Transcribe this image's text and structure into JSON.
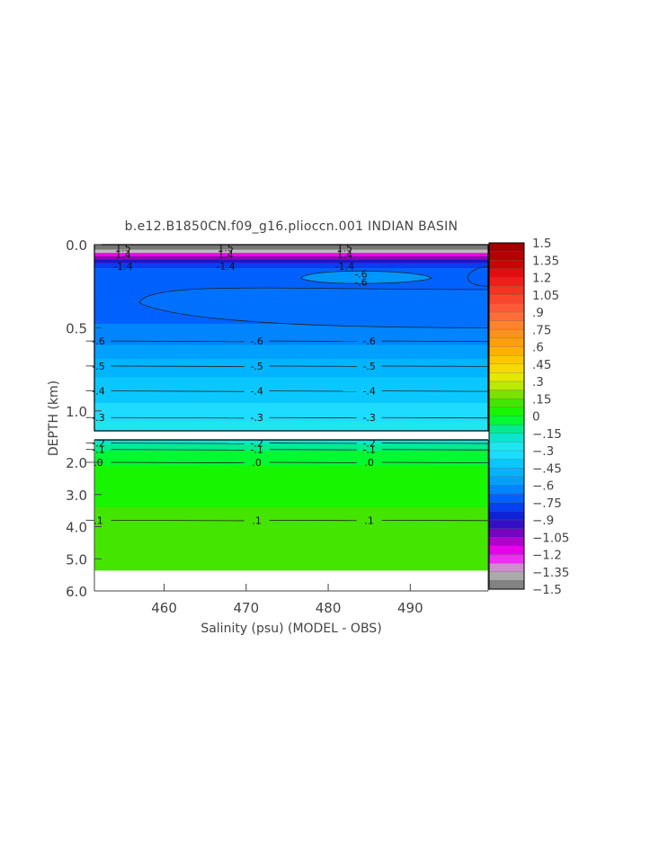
{
  "chart_data": {
    "type": "heatmap",
    "title": "b.e12.B1850CN.f09_g16.plioccn.001 INDIAN BASIN",
    "xlabel": "Salinity (psu) (MODEL - OBS)",
    "ylabel": "DEPTH (km)",
    "xlim": [
      451.5,
      499.5
    ],
    "x_ticks": [
      "460",
      "470",
      "480",
      "490"
    ],
    "x_tick_values": [
      460,
      470,
      480,
      490
    ],
    "upper_panel": {
      "ylim": [
        0.0,
        1.12
      ],
      "y_ticks": [
        "0.0",
        "0.5",
        "1.0"
      ],
      "y_tick_values": [
        0.0,
        0.5,
        1.0
      ]
    },
    "lower_panel": {
      "ylim": [
        1.3,
        6.0
      ],
      "y_ticks": [
        "2.0",
        "3.0",
        "4.0",
        "5.0",
        "6.0"
      ],
      "y_tick_values": [
        2.0,
        3.0,
        4.0,
        5.0,
        6.0
      ],
      "data_bottom_km": 5.35
    },
    "contours": [
      {
        "panel": "upper",
        "depth_km": 0.58,
        "value": -0.6,
        "label": "-.6"
      },
      {
        "panel": "upper",
        "depth_km": 0.73,
        "value": -0.5,
        "label": "-.5"
      },
      {
        "panel": "upper",
        "depth_km": 0.88,
        "value": -0.4,
        "label": "-.4"
      },
      {
        "panel": "upper",
        "depth_km": 1.04,
        "value": -0.3,
        "label": "-.3"
      },
      {
        "panel": "upper",
        "depth_km": 0.22,
        "value": -0.6,
        "label": "-.6"
      },
      {
        "panel": "upper",
        "depth_km": 0.02,
        "value": 1.5,
        "label": "1.5"
      },
      {
        "panel": "upper",
        "depth_km": 0.06,
        "value": 1.4,
        "label": "1.4"
      },
      {
        "panel": "upper",
        "depth_km": 0.13,
        "value": -1.4,
        "label": "-1.4"
      },
      {
        "panel": "lower",
        "depth_km": 1.4,
        "value": -0.2,
        "label": "-.2"
      },
      {
        "panel": "lower",
        "depth_km": 1.6,
        "value": -0.1,
        "label": "-.1"
      },
      {
        "panel": "lower",
        "depth_km": 2.0,
        "value": 0.0,
        "label": ".0"
      },
      {
        "panel": "lower",
        "depth_km": 3.8,
        "value": 0.1,
        "label": ".1"
      }
    ],
    "field": [
      {
        "depth_km": 0.0,
        "value": 1.4
      },
      {
        "depth_km": 0.05,
        "value": -1.35
      },
      {
        "depth_km": 0.1,
        "value": -1.1
      },
      {
        "depth_km": 0.15,
        "value": -0.7
      },
      {
        "depth_km": 0.4,
        "value": -0.7
      },
      {
        "depth_km": 0.55,
        "value": -0.65
      },
      {
        "depth_km": 0.65,
        "value": -0.55
      },
      {
        "depth_km": 0.8,
        "value": -0.45
      },
      {
        "depth_km": 0.95,
        "value": -0.38
      },
      {
        "depth_km": 1.1,
        "value": -0.28
      },
      {
        "depth_km": 1.4,
        "value": -0.18
      },
      {
        "depth_km": 1.6,
        "value": -0.08
      },
      {
        "depth_km": 2.2,
        "value": 0.02
      },
      {
        "depth_km": 3.5,
        "value": 0.08
      },
      {
        "depth_km": 5.3,
        "value": 0.1
      }
    ],
    "colorbar": {
      "ticks": [
        "1.5",
        "1.35",
        "1.2",
        "1.05",
        ".9",
        ".75",
        ".6",
        ".45",
        ".3",
        ".15",
        "0",
        "−.15",
        "−.3",
        "−.45",
        "−.6",
        "−.75",
        "−.9",
        "−1.05",
        "−1.2",
        "−1.35",
        "−1.5"
      ],
      "tick_values": [
        1.5,
        1.35,
        1.2,
        1.05,
        0.9,
        0.75,
        0.6,
        0.45,
        0.3,
        0.15,
        0,
        -0.15,
        -0.3,
        -0.45,
        -0.6,
        -0.75,
        -0.9,
        -1.05,
        -1.2,
        -1.35,
        -1.5
      ],
      "range": [
        -1.5,
        1.5
      ],
      "bands_per_interval": 2
    },
    "colors": {
      "green": "#00ff00",
      "axis": "#444444"
    },
    "grid": false,
    "legend": "colorbar-right"
  }
}
